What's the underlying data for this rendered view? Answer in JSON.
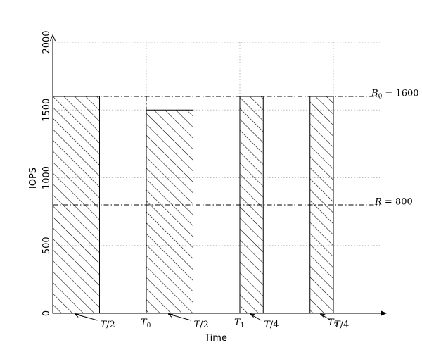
{
  "chart_data": {
    "type": "bar",
    "xlabel": "Time",
    "ylabel": "IOPS",
    "ylim": [
      0,
      2000
    ],
    "yticks": [
      0,
      500,
      1000,
      1500,
      2000
    ],
    "grid": true,
    "bars": [
      {
        "start": 0,
        "end": 0.5,
        "value": 1600
      },
      {
        "start": 1.0,
        "end": 1.5,
        "value": 1500
      },
      {
        "start": 2.0,
        "end": 2.25,
        "value": 1600
      },
      {
        "start": 2.75,
        "end": 3.0,
        "value": 1600
      }
    ],
    "time_markers": [
      {
        "x": 1.0,
        "label": "T",
        "sub": "0"
      },
      {
        "x": 2.0,
        "label": "T",
        "sub": "1"
      },
      {
        "x": 3.0,
        "label": "T",
        "sub": "2"
      }
    ],
    "width_labels": [
      {
        "text": "T/2",
        "bar": 0
      },
      {
        "text": "T/2",
        "bar": 1
      },
      {
        "text": "T/4",
        "bar": 2
      },
      {
        "text": "T/4",
        "bar": 3
      }
    ],
    "reference_lines": [
      {
        "value": 1600,
        "label": "B",
        "sub": "0",
        "suffix": " = 1600"
      },
      {
        "value": 800,
        "label": "R",
        "sub": "",
        "suffix": " = 800"
      }
    ]
  }
}
